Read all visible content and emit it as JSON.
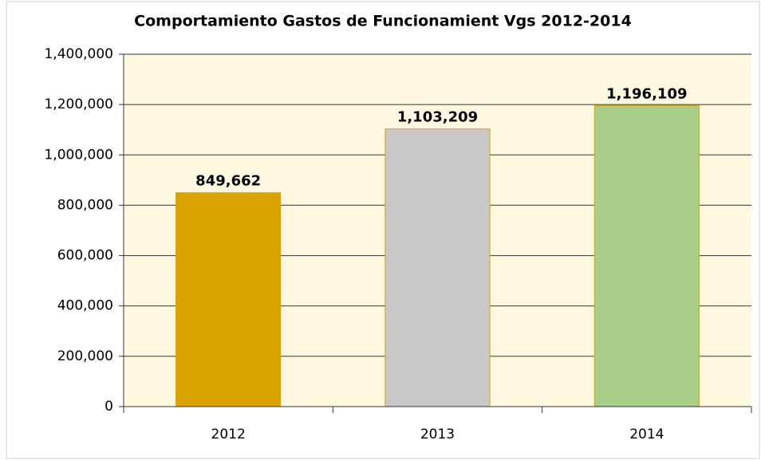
{
  "chart_data": {
    "type": "bar",
    "title": "Comportamiento Gastos de Funcionamient Vgs 2012-2014",
    "categories": [
      "2012",
      "2013",
      "2014"
    ],
    "values": [
      849662,
      1103209,
      1196109
    ],
    "value_labels": [
      "849,662",
      "1,103,209",
      "1,196,109"
    ],
    "colors": [
      "#d9a300",
      "#c8c8c8",
      "#a8ce8a"
    ],
    "ylim": [
      0,
      1400000
    ],
    "yticks": [
      0,
      {
        "value": 200000,
        "label": "200,000"
      },
      {
        "value": 400000,
        "label": "400,000"
      },
      {
        "value": 600000,
        "label": "600,000"
      },
      {
        "value": 800000,
        "label": "800,000"
      },
      {
        "value": 1000000,
        "label": "1,000,000"
      },
      {
        "value": 1200000,
        "label": "1,200,000"
      },
      {
        "value": 1400000,
        "label": "1,400,000"
      }
    ],
    "grid": true
  }
}
